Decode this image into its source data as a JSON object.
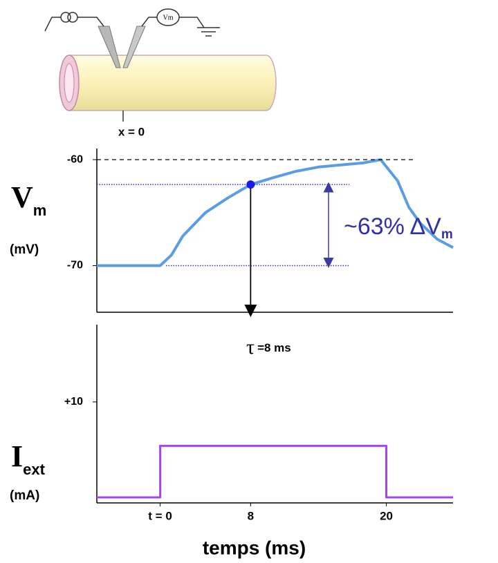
{
  "diagram_label": "x = 0",
  "chart_data": [
    {
      "type": "line",
      "ylabel": {
        "main": "V",
        "sub": "m",
        "unit": "(mV)"
      },
      "x": [
        -5.6,
        -3,
        0,
        1,
        2,
        4,
        6,
        8,
        10,
        12,
        14,
        16,
        18,
        19.5,
        21,
        22,
        23,
        24.5,
        25.9
      ],
      "series": [
        {
          "color": "#5b9ce6",
          "values": [
            -70,
            -70,
            -70,
            -69,
            -67.2,
            -65,
            -63.6,
            -62.35,
            -61.7,
            -61.1,
            -60.7,
            -60.5,
            -60.3,
            -60,
            -62,
            -64.5,
            -66,
            -67.5,
            -68.3
          ]
        }
      ],
      "xlim": [
        -5.6,
        25.9
      ],
      "ylim": [
        -74.4,
        -58.95
      ],
      "yticks": [
        -60,
        -70
      ],
      "annotation": {
        "text": "~63% ΔV",
        "sub": "m"
      },
      "tau": {
        "symbol": "τ",
        "text": "=8 ms"
      }
    },
    {
      "type": "line",
      "ylabel": {
        "main": "I",
        "sub": "ext",
        "unit": "(mA)"
      },
      "xlabel": "temps (ms)",
      "x": [
        -5.6,
        0,
        0,
        20,
        20,
        25.9
      ],
      "series": [
        {
          "color": "#a545f0",
          "values": [
            0,
            0,
            5.4,
            5.4,
            0,
            0
          ]
        }
      ],
      "xlim": [
        -5.6,
        25.9
      ],
      "ylim": [
        -0.58,
        18.1
      ],
      "xticks": [
        {
          "value": 0,
          "label": "t = 0"
        },
        8,
        20
      ],
      "yticks": [
        {
          "value": 10,
          "label": "+10"
        }
      ]
    }
  ]
}
